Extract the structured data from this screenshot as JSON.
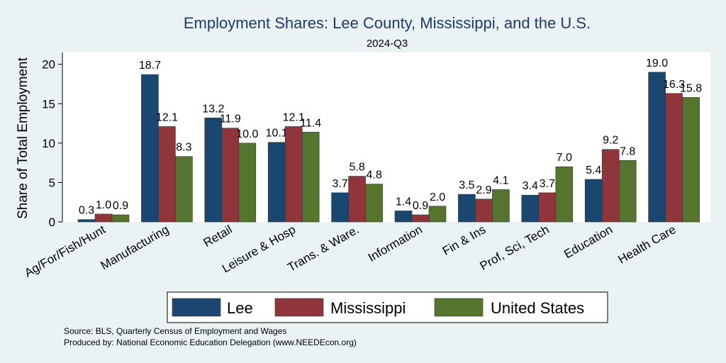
{
  "chart_data": {
    "type": "bar",
    "title": "Employment Shares: Lee County, Mississippi, and the U.S.",
    "subtitle": "2024-Q3",
    "xlabel": "",
    "ylabel": "Share of Total Employment",
    "ylim": [
      0,
      21.5
    ],
    "yticks": [
      0,
      5,
      10,
      15,
      20
    ],
    "categories": [
      "Ag/For/Fish/Hunt",
      "Manufacturing",
      "Retail",
      "Leisure & Hosp",
      "Trans. & Ware.",
      "Information",
      "Fin & Ins",
      "Prof, Sci, Tech",
      "Education",
      "Health Care"
    ],
    "series": [
      {
        "name": "Lee",
        "color": "#1a476f",
        "values": [
          0.3,
          18.7,
          13.2,
          10.1,
          3.7,
          1.4,
          3.5,
          3.4,
          5.4,
          19.0
        ]
      },
      {
        "name": "Mississippi",
        "color": "#90353b",
        "values": [
          1.0,
          12.1,
          11.9,
          12.1,
          5.8,
          0.9,
          2.9,
          3.7,
          9.2,
          16.3
        ]
      },
      {
        "name": "United States",
        "color": "#55752f",
        "values": [
          0.9,
          8.3,
          10.0,
          11.4,
          4.8,
          2.0,
          4.1,
          7.0,
          7.8,
          15.8
        ]
      }
    ],
    "legend_position": "bottom"
  },
  "notes": {
    "source": "Source: BLS, Quarterly Census of Employment and Wages",
    "produced": "Produced by: National Economic Education Delegation (www.NEEDEcon.org)"
  }
}
